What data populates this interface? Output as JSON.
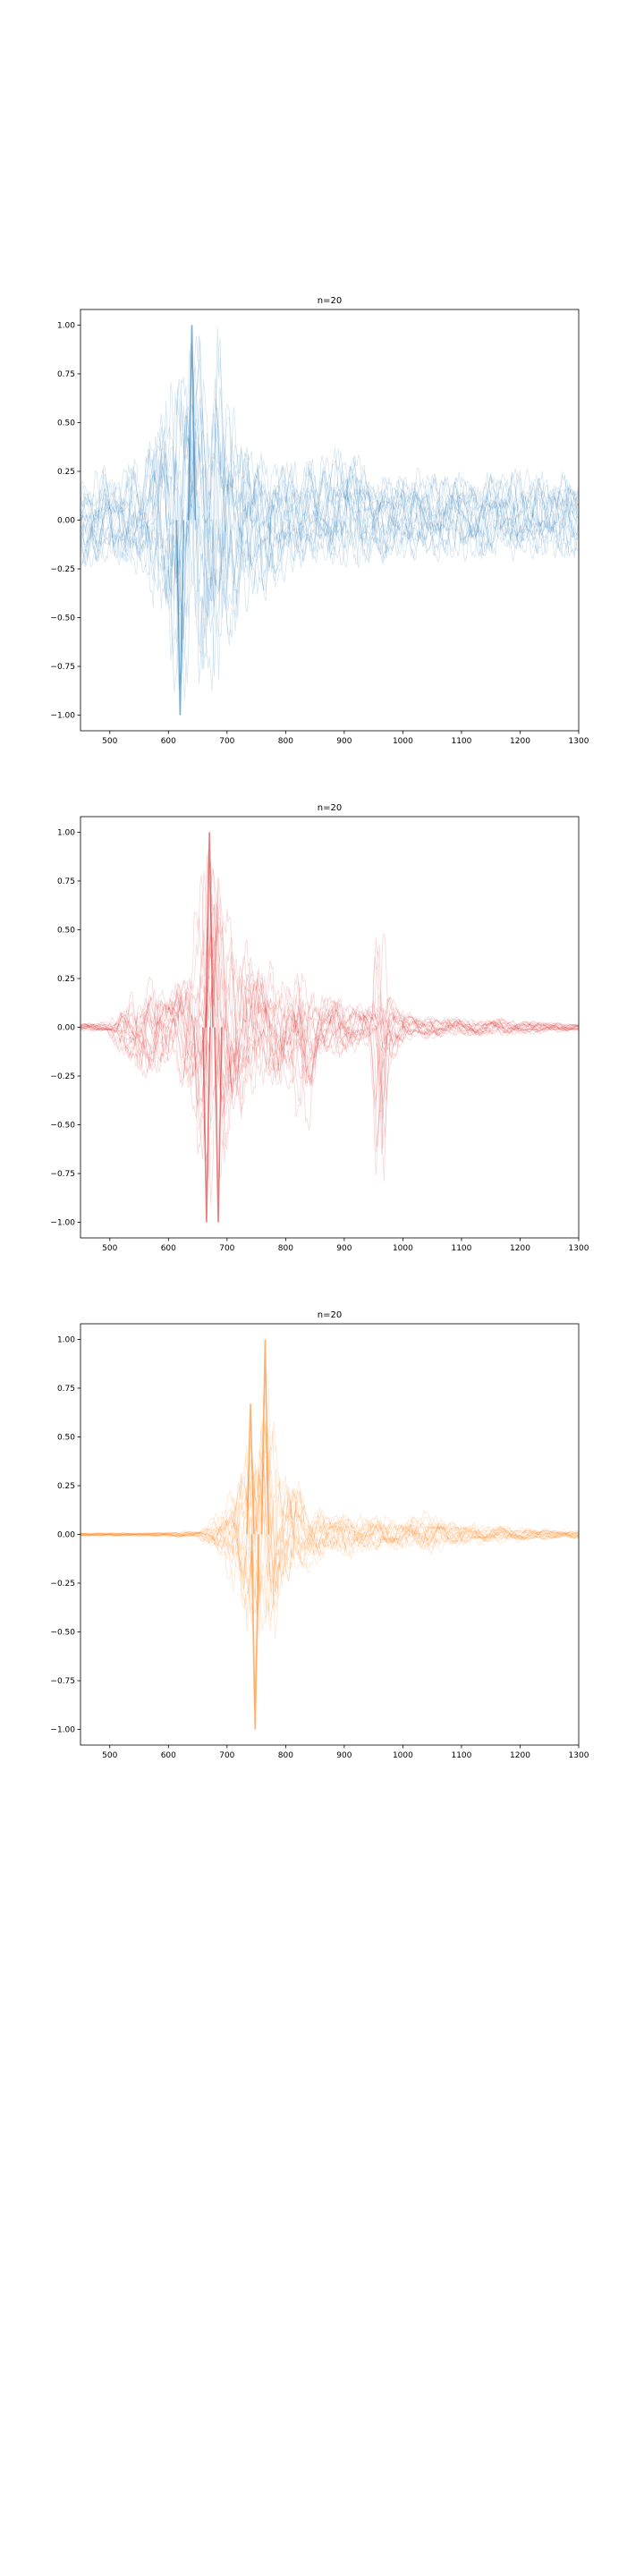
{
  "figure": {
    "background": "#ffffff"
  },
  "chart_data": [
    {
      "type": "line",
      "title": "n=20",
      "xlabel": "",
      "ylabel": "",
      "xlim": [
        450,
        1300
      ],
      "ylim": [
        -1.08,
        1.08
      ],
      "xticks": [
        "500",
        "600",
        "700",
        "800",
        "900",
        "1000",
        "1100",
        "1200",
        "1300"
      ],
      "yticks": [
        "1.00",
        "0.75",
        "0.50",
        "0.25",
        "0.00",
        "−0.25",
        "−0.50",
        "−0.75",
        "−1.00"
      ],
      "grid": false,
      "legend": "none",
      "color": "#1f77b4",
      "n_series": 20,
      "series_style": "20 overlaid normalized waveforms, semi-transparent",
      "x": [
        450,
        500,
        550,
        580,
        600,
        610,
        615,
        620,
        630,
        640,
        650,
        665,
        680,
        700,
        720,
        740,
        760,
        780,
        800,
        850,
        900,
        950,
        1000,
        1050,
        1100,
        1150,
        1200,
        1250,
        1300
      ],
      "envelope_min": [
        -0.25,
        -0.25,
        -0.3,
        -0.45,
        -0.7,
        -0.85,
        -1.0,
        -1.0,
        -0.7,
        -0.75,
        -0.85,
        -0.95,
        -0.9,
        -0.7,
        -0.5,
        -0.45,
        -0.4,
        -0.35,
        -0.3,
        -0.25,
        -0.25,
        -0.22,
        -0.22,
        -0.2,
        -0.2,
        -0.2,
        -0.2,
        -0.2,
        -0.2
      ],
      "envelope_max": [
        0.25,
        0.25,
        0.3,
        0.5,
        0.7,
        0.95,
        0.9,
        0.8,
        1.0,
        1.0,
        0.9,
        0.85,
        1.0,
        0.7,
        0.5,
        0.4,
        0.35,
        0.35,
        0.3,
        0.3,
        0.4,
        0.25,
        0.25,
        0.25,
        0.25,
        0.25,
        0.25,
        0.25,
        0.25
      ],
      "highlight_peaks": [
        {
          "x": 620,
          "y": -1.0
        },
        {
          "x": 640,
          "y": 1.0
        }
      ]
    },
    {
      "type": "line",
      "title": "n=20",
      "xlabel": "",
      "ylabel": "",
      "xlim": [
        450,
        1300
      ],
      "ylim": [
        -1.08,
        1.08
      ],
      "xticks": [
        "500",
        "600",
        "700",
        "800",
        "900",
        "1000",
        "1100",
        "1200",
        "1300"
      ],
      "yticks": [
        "1.00",
        "0.75",
        "0.50",
        "0.25",
        "0.00",
        "−0.25",
        "−0.50",
        "−0.75",
        "−1.00"
      ],
      "grid": false,
      "legend": "none",
      "color": "#d62728",
      "n_series": 20,
      "series_style": "20 overlaid normalized waveforms, semi-transparent",
      "x": [
        450,
        500,
        550,
        600,
        630,
        650,
        660,
        670,
        680,
        690,
        700,
        720,
        750,
        800,
        830,
        850,
        900,
        950,
        960,
        970,
        1000,
        1050,
        1100,
        1150,
        1200,
        1250,
        1300
      ],
      "envelope_min": [
        -0.02,
        -0.03,
        -0.3,
        -0.2,
        -0.3,
        -0.6,
        -1.0,
        -0.9,
        -1.0,
        -0.9,
        -0.7,
        -0.5,
        -0.35,
        -0.3,
        -0.6,
        -0.2,
        -0.15,
        -0.1,
        -0.92,
        -0.3,
        -0.08,
        -0.06,
        -0.05,
        -0.05,
        -0.04,
        -0.03,
        -0.02
      ],
      "envelope_max": [
        0.02,
        0.03,
        0.2,
        0.25,
        0.3,
        0.7,
        1.0,
        0.95,
        1.0,
        0.8,
        0.65,
        0.5,
        0.35,
        0.3,
        0.25,
        0.2,
        0.15,
        0.12,
        0.62,
        0.3,
        0.08,
        0.06,
        0.05,
        0.05,
        0.04,
        0.03,
        0.02
      ],
      "highlight_peaks": [
        {
          "x": 665,
          "y": -1.0
        },
        {
          "x": 670,
          "y": 1.0
        },
        {
          "x": 685,
          "y": -1.0
        }
      ]
    },
    {
      "type": "line",
      "title": "n=20",
      "xlabel": "",
      "ylabel": "",
      "xlim": [
        450,
        1300
      ],
      "ylim": [
        -1.08,
        1.08
      ],
      "xticks": [
        "500",
        "600",
        "700",
        "800",
        "900",
        "1000",
        "1100",
        "1200",
        "1300"
      ],
      "yticks": [
        "1.00",
        "0.75",
        "0.50",
        "0.25",
        "0.00",
        "−0.25",
        "−0.50",
        "−0.75",
        "−1.00"
      ],
      "grid": false,
      "legend": "none",
      "color": "#ff7f0e",
      "n_series": 20,
      "series_style": "20 overlaid normalized waveforms, semi-transparent",
      "x": [
        450,
        550,
        650,
        680,
        700,
        720,
        735,
        745,
        755,
        765,
        775,
        790,
        810,
        830,
        850,
        900,
        950,
        1000,
        1040,
        1100,
        1150,
        1200,
        1250,
        1300
      ],
      "envelope_min": [
        -0.01,
        -0.01,
        -0.02,
        -0.1,
        -0.2,
        -0.35,
        -0.6,
        -1.0,
        -0.8,
        -0.5,
        -0.7,
        -0.45,
        -0.3,
        -0.2,
        -0.15,
        -0.12,
        -0.1,
        -0.08,
        -0.1,
        -0.06,
        -0.05,
        -0.04,
        -0.03,
        -0.02
      ],
      "envelope_max": [
        0.01,
        0.01,
        0.02,
        0.1,
        0.2,
        0.35,
        0.67,
        0.7,
        0.9,
        1.0,
        0.6,
        0.4,
        0.35,
        0.2,
        0.15,
        0.12,
        0.1,
        0.08,
        0.12,
        0.06,
        0.05,
        0.04,
        0.03,
        0.02
      ],
      "highlight_peaks": [
        {
          "x": 748,
          "y": -1.0
        },
        {
          "x": 765,
          "y": 1.0
        },
        {
          "x": 740,
          "y": 0.67
        }
      ]
    }
  ]
}
